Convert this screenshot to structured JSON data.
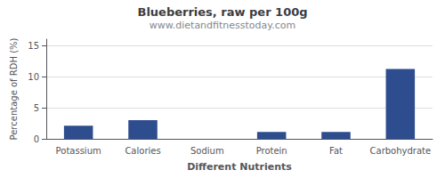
{
  "chart_data": {
    "type": "bar",
    "title": "Blueberries, raw per 100g",
    "subtitle": "www.dietandfitnesstoday.com",
    "xlabel": "Different Nutrients",
    "ylabel": "Percentage of RDH (%)",
    "categories": [
      "Potassium",
      "Calories",
      "Sodium",
      "Protein",
      "Fat",
      "Carbohydrate"
    ],
    "values": [
      2.1,
      3.0,
      0.0,
      1.1,
      1.1,
      11.2
    ],
    "color": "#2e4d8e",
    "ylim": [
      0,
      16
    ],
    "yticks": [
      0,
      5,
      10,
      15
    ],
    "grid": true
  }
}
